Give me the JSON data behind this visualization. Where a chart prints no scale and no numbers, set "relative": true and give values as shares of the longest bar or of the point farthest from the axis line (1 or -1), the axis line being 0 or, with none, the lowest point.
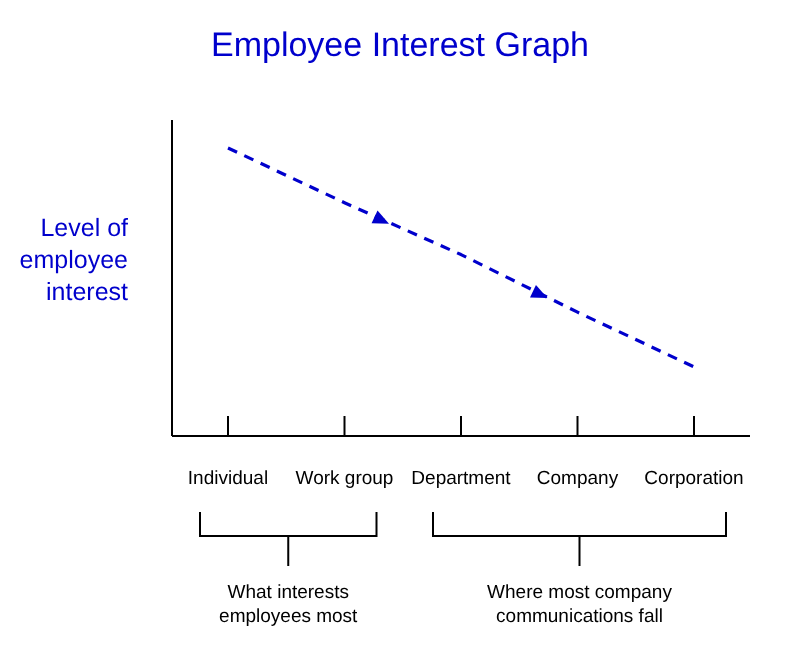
{
  "chart_data": {
    "type": "line",
    "title": "Employee Interest Graph",
    "ylabel": "Level of\nemployee\ninterest",
    "categories": [
      "Individual",
      "Work group",
      "Department",
      "Company",
      "Corporation"
    ],
    "relative": true,
    "series": [
      {
        "color": "#0000cc",
        "values": [
          1,
          0.81,
          0.63,
          0.43,
          0.24
        ]
      }
    ],
    "line_style": "dashed",
    "marker": "none",
    "grid": false,
    "annotations": [
      "What interests\nemployees most",
      "Where most company\ncommunications fall"
    ]
  }
}
